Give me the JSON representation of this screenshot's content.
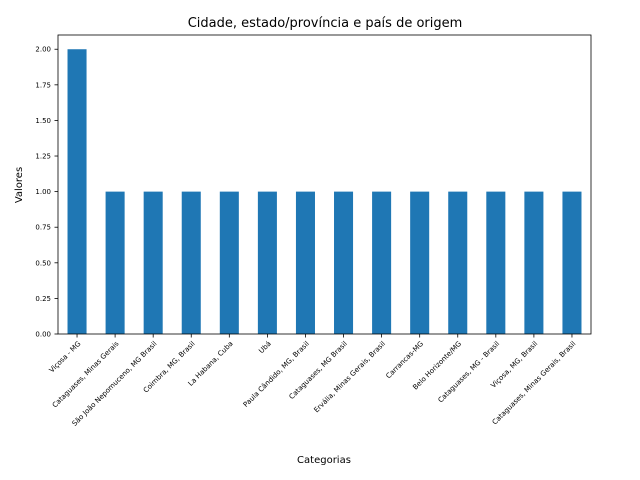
{
  "chart_data": {
    "type": "bar",
    "title": "Cidade, estado/província e país de origem",
    "xlabel": "Categorias",
    "ylabel": "Valores",
    "categories": [
      "Viçosa - MG",
      "Cataguases, Minas Gerais",
      "São João Nepomuceno, MG Brasil",
      "Coimbra, MG, Brasil",
      "La Habana, Cuba",
      "Ubá",
      "Paula Cândido, MG, Brasil",
      "Cataguases, MG Brasil",
      "Ervália, Minas Gerais, Brasil",
      "Carrancas-MG",
      "Belo Horizonte/MG",
      "Cataguases, MG - Brasil",
      "Viçosa, MG, Brasil",
      "Cataguases, Minas Gerais, Brasil"
    ],
    "values": [
      2,
      1,
      1,
      1,
      1,
      1,
      1,
      1,
      1,
      1,
      1,
      1,
      1,
      1
    ],
    "ylim": [
      0,
      2.1
    ],
    "yticks": [
      "0.00",
      "0.25",
      "0.50",
      "0.75",
      "1.00",
      "1.25",
      "1.50",
      "1.75",
      "2.00"
    ],
    "bar_color": "#1f77b4",
    "grid": false,
    "legend": "none"
  }
}
